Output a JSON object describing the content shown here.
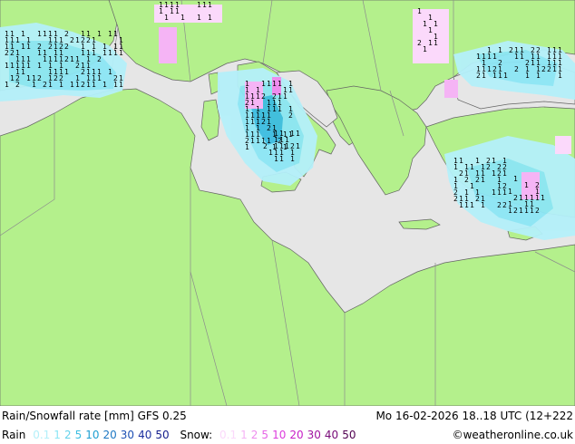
{
  "title": "Rain/Snowfall rate [mm] GFS 0.25",
  "datetime": "Mo 16-02-2026 18..18 UTC (12+222",
  "rain_label": "Rain",
  "rain_levels": [
    "0.1",
    "1",
    "2",
    "5",
    "10",
    "20",
    "30",
    "40",
    "50"
  ],
  "rain_colors": [
    "#b4f0fa",
    "#8ce6f5",
    "#64d2eb",
    "#3cbde1",
    "#1e9fd2",
    "#1e78c3",
    "#1e50b4",
    "#1e32a0",
    "#141e8c"
  ],
  "snow_label": "Snow:",
  "snow_levels": [
    "0.1",
    "1",
    "2",
    "5",
    "10",
    "20",
    "30",
    "40",
    "50"
  ],
  "snow_colors": [
    "#fbd9fb",
    "#f5b4f5",
    "#ee8cee",
    "#e664e6",
    "#dc3cdc",
    "#c81ec8",
    "#a014a0",
    "#780a78",
    "#500050"
  ],
  "credit": "©weatheronline.co.uk",
  "colors": {
    "land": "#b4f08c",
    "sea": "#e6e6e6",
    "border": "#8c8c8c",
    "coast": "#646464"
  }
}
